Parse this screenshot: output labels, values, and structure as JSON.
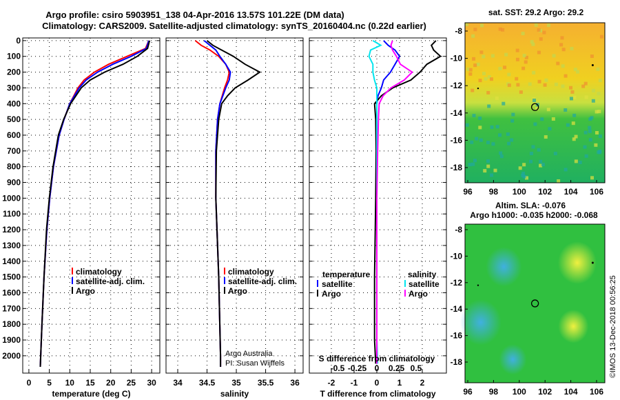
{
  "title_line1": "Argo profile: csiro 5903951_138 04-Apr-2016 13.57S 101.22E (DM data)",
  "title_line2": "Climatology: CARS2009. Satellite-adjusted climatology: synTS_20160404.nc (0.22d earlier)",
  "credit": "©IMOS 13-Dec-2018 00:56:25",
  "colors": {
    "climatology": "#ff0000",
    "satellite": "#0000ff",
    "argo": "#000000",
    "sat_salinity": "#00e5ee",
    "argo_salinity": "#ff00ff"
  },
  "chart_data": [
    {
      "type": "line",
      "id": "temperature",
      "xlabel": "temperature (deg C)",
      "xlim": [
        -1.5,
        32
      ],
      "ylim": [
        2110,
        -17
      ],
      "xticks": [
        "0",
        "5",
        "10",
        "15",
        "20",
        "25",
        "30"
      ],
      "xtick_values": [
        0,
        5,
        10,
        15,
        20,
        25,
        30
      ],
      "yticks": [
        "0",
        "100",
        "200",
        "300",
        "400",
        "500",
        "600",
        "700",
        "800",
        "900",
        "1000",
        "1100",
        "1200",
        "1300",
        "1400",
        "1500",
        "1600",
        "1700",
        "1800",
        "1900",
        "2000"
      ],
      "legend": [
        "climatology",
        "satellite-adj. clim.",
        "Argo"
      ],
      "depth": [
        0,
        50,
        100,
        150,
        200,
        250,
        300,
        400,
        500,
        600,
        800,
        1000,
        1200,
        1500,
        1800,
        2000,
        2070
      ],
      "series": [
        {
          "name": "climatology",
          "color": "#ff0000",
          "values": [
            29.3,
            28.5,
            24,
            19.5,
            16,
            13.5,
            12,
            10,
            8.6,
            7.4,
            6,
            5.1,
            4.4,
            3.7,
            3.2,
            2.9,
            2.8
          ]
        },
        {
          "name": "satellite-adj. clim.",
          "color": "#0000ff",
          "values": [
            29.3,
            28.7,
            25,
            20.5,
            16.8,
            14,
            12.3,
            10,
            8.6,
            7.4,
            6,
            5.1,
            4.4,
            3.7,
            3.2,
            2.9,
            2.8
          ]
        },
        {
          "name": "Argo",
          "color": "#000000",
          "values": [
            29.5,
            29,
            26.5,
            23,
            18.5,
            15,
            12.8,
            10.2,
            8.5,
            7.2,
            5.9,
            5,
            4.3,
            3.7,
            3.2,
            2.9,
            2.8
          ]
        }
      ]
    },
    {
      "type": "line",
      "id": "salinity",
      "xlabel": "salinity",
      "xlim": [
        33.8,
        36.14
      ],
      "ylim": [
        2110,
        -17
      ],
      "xticks": [
        "34",
        "34.5",
        "35",
        "35.5",
        "36"
      ],
      "xtick_values": [
        34,
        34.5,
        35,
        35.5,
        36
      ],
      "legend": [
        "climatology",
        "satellite-adj. clim.",
        "Argo"
      ],
      "annotation": [
        "Argo Australia",
        "PI: Susan Wijffels"
      ],
      "depth": [
        0,
        30,
        60,
        100,
        150,
        200,
        250,
        300,
        350,
        400,
        500,
        700,
        1000,
        1500,
        2000,
        2070
      ],
      "series": [
        {
          "name": "climatology",
          "color": "#ff0000",
          "values": [
            34.3,
            34.4,
            34.55,
            34.7,
            34.82,
            34.88,
            34.85,
            34.8,
            34.76,
            34.72,
            34.68,
            34.65,
            34.65,
            34.7,
            34.73,
            34.73
          ]
        },
        {
          "name": "satellite-adj. clim.",
          "color": "#0000ff",
          "values": [
            34.45,
            34.55,
            34.65,
            34.72,
            34.82,
            34.9,
            34.88,
            34.82,
            34.77,
            34.72,
            34.68,
            34.65,
            34.65,
            34.7,
            34.73,
            34.73
          ]
        },
        {
          "name": "Argo",
          "color": "#000000",
          "values": [
            34.5,
            34.6,
            34.75,
            34.95,
            35.15,
            35.4,
            35.2,
            34.98,
            34.85,
            34.75,
            34.7,
            34.66,
            34.65,
            34.7,
            34.73,
            34.73
          ]
        }
      ]
    },
    {
      "type": "line",
      "id": "difference",
      "xlabel": "T difference from climatology",
      "xlim": [
        -2.97,
        3.06
      ],
      "ylim": [
        2110,
        -17
      ],
      "xticks": [
        "-2",
        "-1",
        "0",
        "1",
        "2"
      ],
      "xtick_values": [
        -2,
        -1,
        0,
        1,
        2
      ],
      "x2label": "S difference from climatology",
      "x2ticks": [
        "-0.5",
        "-0.25",
        "0",
        "0.25",
        "0.5"
      ],
      "x2tick_values": [
        -0.5,
        -0.25,
        0,
        0.25,
        0.5
      ],
      "legend_temperature": {
        "title": "temperature",
        "items": [
          "satellite",
          "Argo"
        ]
      },
      "legend_salinity": {
        "title": "salinity",
        "items": [
          "satellite",
          "Argo"
        ]
      },
      "depth": [
        0,
        30,
        60,
        100,
        150,
        200,
        250,
        300,
        350,
        400,
        500,
        700,
        1000,
        1500,
        1900,
        2050
      ],
      "series": [
        {
          "name": "T satellite",
          "color": "#0000ff",
          "values": [
            0.3,
            0.5,
            0.8,
            1.0,
            0.8,
            0.6,
            0.3,
            0.2,
            0.05,
            0,
            0,
            0,
            0,
            0,
            0,
            0
          ]
        },
        {
          "name": "T Argo",
          "color": "#000000",
          "values": [
            2.6,
            2.4,
            2.5,
            2.8,
            2.2,
            1.9,
            1.5,
            0.7,
            0.2,
            -0.1,
            -0.05,
            -0.03,
            -0.05,
            -0.1,
            -0.1,
            -0.05
          ]
        },
        {
          "name": "S satellite",
          "color": "#00e5ee",
          "values": [
            -0.05,
            0.05,
            -0.08,
            -0.1,
            -0.05,
            -0.05,
            -0.03,
            0,
            0,
            0,
            0,
            0,
            0,
            0,
            0,
            0.01
          ]
        },
        {
          "name": "S Argo",
          "color": "#ff00ff",
          "values": [
            0.2,
            0.18,
            0.2,
            0.25,
            0.3,
            0.45,
            0.35,
            0.18,
            0.08,
            0.03,
            0.02,
            0.01,
            0,
            0,
            0,
            0
          ]
        }
      ]
    }
  ],
  "map_top": {
    "title": "sat. SST: 29.2 Argo: 29.2",
    "xticks": [
      "96",
      "98",
      "100",
      "102",
      "104",
      "106"
    ],
    "yticks": [
      "-8",
      "-10",
      "-12",
      "-14",
      "-16",
      "-18"
    ],
    "profile": [
      101.22,
      -13.57
    ]
  },
  "map_bottom": {
    "title1": "Altim. SLA: -0.076",
    "title2": "Argo h1000: -0.035 h2000: -0.068",
    "xticks": [
      "96",
      "98",
      "100",
      "102",
      "104",
      "106"
    ],
    "yticks": [
      "-8",
      "-10",
      "-12",
      "-14",
      "-16",
      "-18"
    ],
    "profile": [
      101.22,
      -13.57
    ]
  }
}
